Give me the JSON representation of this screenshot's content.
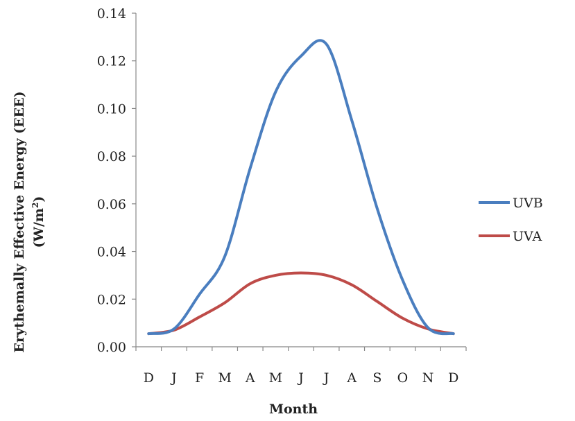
{
  "chart_data": {
    "type": "line",
    "categories": [
      "D",
      "J",
      "F",
      "M",
      "A",
      "M",
      "J",
      "J",
      "A",
      "S",
      "O",
      "N",
      "D"
    ],
    "series": [
      {
        "name": "UVB",
        "color": "#4a7ebf",
        "values": [
          0.0055,
          0.0075,
          0.022,
          0.038,
          0.075,
          0.107,
          0.122,
          0.127,
          0.095,
          0.058,
          0.028,
          0.008,
          0.0055
        ]
      },
      {
        "name": "UVA",
        "color": "#be4b48",
        "values": [
          0.0055,
          0.007,
          0.0125,
          0.0185,
          0.0265,
          0.03,
          0.031,
          0.03,
          0.026,
          0.019,
          0.012,
          0.0075,
          0.0055
        ]
      }
    ],
    "yticks": [
      "0.00",
      "0.02",
      "0.04",
      "0.06",
      "0.08",
      "0.10",
      "0.12",
      "0.14"
    ],
    "ylim": [
      0,
      0.14
    ],
    "xlabel": "Month",
    "ylabel_line1": "Erythemally Effective Energy (EEE)",
    "ylabel_line2_prefix": "(W/m",
    "ylabel_line2_sup": "2",
    "ylabel_line2_suffix": ")",
    "grid": false,
    "legend_position": "right"
  }
}
